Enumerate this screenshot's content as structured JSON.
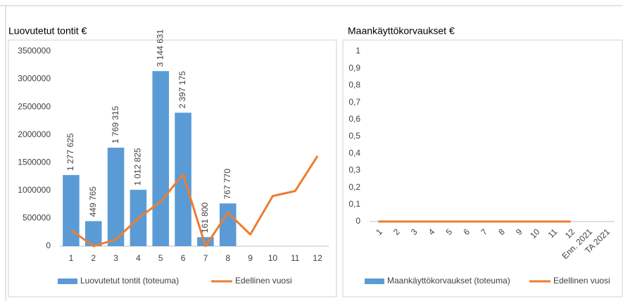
{
  "chart_data": [
    {
      "type": "bar",
      "title": "Luovutetut tontit €",
      "categories": [
        "1",
        "2",
        "3",
        "4",
        "5",
        "6",
        "7",
        "8",
        "9",
        "10",
        "11",
        "12"
      ],
      "series": [
        {
          "name": "Luovutetut tontit (toteuma)",
          "color": "#5b9bd5",
          "type": "bar",
          "values": [
            1277625,
            449765,
            1769315,
            1012825,
            3144631,
            2397175,
            161800,
            767770,
            null,
            null,
            null,
            null
          ],
          "value_labels": [
            "1 277 625",
            "449 765",
            "1 769 315",
            "1 012 825",
            "3 144 631",
            "2 397 175",
            "161 800",
            "767 770",
            null,
            null,
            null,
            null
          ]
        },
        {
          "name": "Edellinen vuosi",
          "color": "#ed7d31",
          "type": "line",
          "values": [
            290000,
            0,
            120000,
            500000,
            800000,
            1290000,
            0,
            600000,
            210000,
            900000,
            990000,
            1620000
          ]
        }
      ],
      "ylim": [
        0,
        3500000
      ],
      "yticks": [
        0,
        500000,
        1000000,
        1500000,
        2000000,
        2500000,
        3000000,
        3500000
      ],
      "grid": false,
      "legend": "bottom"
    },
    {
      "type": "bar",
      "title": "Maankäyttökorvaukset €",
      "categories": [
        "1",
        "2",
        "3",
        "4",
        "5",
        "6",
        "7",
        "8",
        "9",
        "10",
        "11",
        "12",
        "Enn. 2021",
        "TA 2021"
      ],
      "series": [
        {
          "name": "Maankäyttökorvaukset (toteuma)",
          "color": "#5b9bd5",
          "type": "bar",
          "values": [
            0,
            0,
            0,
            0,
            0,
            0,
            0,
            0,
            0,
            0,
            0,
            0,
            null,
            null
          ]
        },
        {
          "name": "Edellinen vuosi",
          "color": "#ed7d31",
          "type": "line",
          "values": [
            0,
            0,
            0,
            0,
            0,
            0,
            0,
            0,
            0,
            0,
            0,
            0,
            null,
            null
          ]
        }
      ],
      "ylim": [
        0,
        1
      ],
      "yticks": [
        0,
        {
          "value": 0.1,
          "label": "0,1"
        },
        {
          "value": 0.2,
          "label": "0,2"
        },
        {
          "value": 0.3,
          "label": "0,3"
        },
        {
          "value": 0.4,
          "label": "0,4"
        },
        {
          "value": 0.5,
          "label": "0,5"
        },
        {
          "value": 0.6,
          "label": "0,6"
        },
        {
          "value": 0.7,
          "label": "0,7"
        },
        {
          "value": 0.8,
          "label": "0,8"
        },
        {
          "value": 0.9,
          "label": "0,9"
        },
        1
      ],
      "grid": false,
      "legend": "bottom"
    }
  ]
}
